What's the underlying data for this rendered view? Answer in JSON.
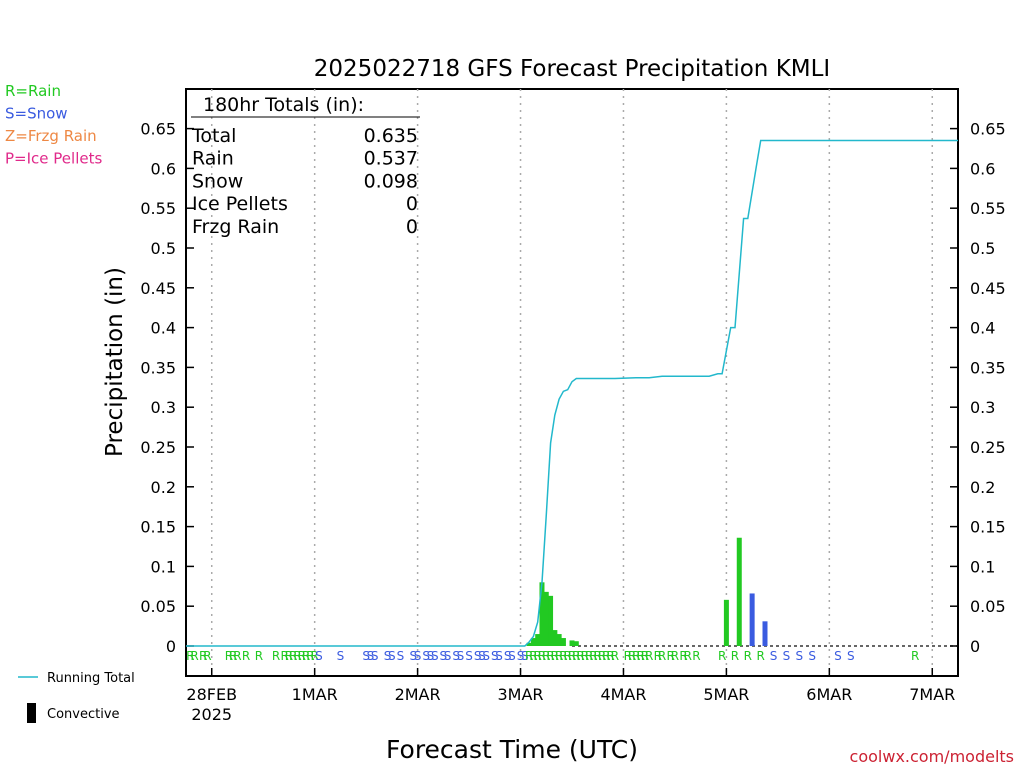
{
  "chart_data": {
    "type": "bar",
    "title": "2025022718 GFS Forecast Precipitation KMLI",
    "xlabel": "Forecast Time (UTC)",
    "ylabel": "Precipitation (in)",
    "ylim": [
      -0.025,
      0.7
    ],
    "y_ticks": [
      0,
      0.05,
      0.1,
      0.15,
      0.2,
      0.25,
      0.3,
      0.35,
      0.4,
      0.45,
      0.5,
      0.55,
      0.6,
      0.65
    ],
    "y_tick_labels": [
      "0",
      "0.05",
      "0.1",
      "0.15",
      "0.2",
      "0.25",
      "0.3",
      "0.35",
      "0.4",
      "0.45",
      "0.5",
      "0.55",
      "0.6",
      "0.65"
    ],
    "x_tick_labels": [
      "28FEB",
      "1MAR",
      "2MAR",
      "3MAR",
      "4MAR",
      "5MAR",
      "6MAR",
      "7MAR"
    ],
    "x_tick_sublabel": "2025",
    "x_tick_hours": [
      6,
      30,
      54,
      78,
      102,
      126,
      150,
      174
    ],
    "x_range_hours": [
      0,
      180
    ],
    "grid": "vertical dotted at day ticks",
    "legend_types": [
      {
        "label": "R=Rain",
        "color": "#22c922"
      },
      {
        "label": "S=Snow",
        "color": "#3a5be0"
      },
      {
        "label": "Z=Frzg Rain",
        "color": "#ee8844"
      },
      {
        "label": "P=Ice Pellets",
        "color": "#e0298a"
      }
    ],
    "legend_lines": [
      {
        "label": "Running Total",
        "color": "#22b8cc"
      },
      {
        "label": "Convective",
        "color": "#000000"
      }
    ],
    "totals": {
      "header": "180hr Totals (in):",
      "rows": [
        {
          "label": "Total",
          "value": "0.635"
        },
        {
          "label": "Rain",
          "value": "0.537"
        },
        {
          "label": "Snow",
          "value": "0.098"
        },
        {
          "label": "Ice Pellets",
          "value": "0"
        },
        {
          "label": "Frzg Rain",
          "value": "0"
        }
      ]
    },
    "running_total": {
      "name": "Running Total",
      "hours": [
        0,
        79,
        80,
        81,
        82,
        83,
        84,
        85,
        86,
        87,
        88,
        89,
        90,
        91,
        92,
        93,
        94,
        96,
        100,
        105,
        108,
        111,
        114,
        119,
        122,
        124,
        125,
        127,
        128,
        130,
        131,
        133,
        134,
        180
      ],
      "values": [
        0,
        0,
        0.005,
        0.012,
        0.03,
        0.08,
        0.165,
        0.255,
        0.29,
        0.31,
        0.32,
        0.322,
        0.332,
        0.336,
        0.336,
        0.336,
        0.336,
        0.336,
        0.336,
        0.337,
        0.337,
        0.339,
        0.339,
        0.339,
        0.339,
        0.342,
        0.342,
        0.4,
        0.4,
        0.537,
        0.537,
        0.603,
        0.635,
        0.635
      ]
    },
    "bars": [
      {
        "hour": 80,
        "value": 0.004,
        "type": "rain"
      },
      {
        "hour": 81,
        "value": 0.01,
        "type": "rain"
      },
      {
        "hour": 82,
        "value": 0.015,
        "type": "rain"
      },
      {
        "hour": 83,
        "value": 0.08,
        "type": "rain"
      },
      {
        "hour": 84,
        "value": 0.068,
        "type": "rain"
      },
      {
        "hour": 85,
        "value": 0.063,
        "type": "rain"
      },
      {
        "hour": 86,
        "value": 0.02,
        "type": "rain"
      },
      {
        "hour": 87,
        "value": 0.015,
        "type": "rain"
      },
      {
        "hour": 88,
        "value": 0.01,
        "type": "rain"
      },
      {
        "hour": 90,
        "value": 0.007,
        "type": "rain"
      },
      {
        "hour": 91,
        "value": 0.006,
        "type": "rain"
      },
      {
        "hour": 126,
        "value": 0.058,
        "type": "rain"
      },
      {
        "hour": 129,
        "value": 0.136,
        "type": "rain"
      },
      {
        "hour": 132,
        "value": 0.066,
        "type": "snow"
      },
      {
        "hour": 135,
        "value": 0.031,
        "type": "snow"
      }
    ],
    "type_marks": [
      {
        "hour": 1,
        "type": "R"
      },
      {
        "hour": 2,
        "type": "R"
      },
      {
        "hour": 4,
        "type": "R"
      },
      {
        "hour": 5,
        "type": "R"
      },
      {
        "hour": 10,
        "type": "R"
      },
      {
        "hour": 11,
        "type": "R"
      },
      {
        "hour": 12,
        "type": "R"
      },
      {
        "hour": 14,
        "type": "R"
      },
      {
        "hour": 17,
        "type": "R"
      },
      {
        "hour": 21,
        "type": "R"
      },
      {
        "hour": 23,
        "type": "R"
      },
      {
        "hour": 24,
        "type": "R"
      },
      {
        "hour": 25,
        "type": "R"
      },
      {
        "hour": 26,
        "type": "R"
      },
      {
        "hour": 27,
        "type": "R"
      },
      {
        "hour": 28,
        "type": "R"
      },
      {
        "hour": 29,
        "type": "R"
      },
      {
        "hour": 30,
        "type": "R"
      },
      {
        "hour": 31,
        "type": "S"
      },
      {
        "hour": 36,
        "type": "S"
      },
      {
        "hour": 42,
        "type": "S"
      },
      {
        "hour": 43,
        "type": "S"
      },
      {
        "hour": 44,
        "type": "S"
      },
      {
        "hour": 47,
        "type": "S"
      },
      {
        "hour": 48,
        "type": "S"
      },
      {
        "hour": 50,
        "type": "S"
      },
      {
        "hour": 53,
        "type": "S"
      },
      {
        "hour": 54,
        "type": "S"
      },
      {
        "hour": 56,
        "type": "S"
      },
      {
        "hour": 57,
        "type": "S"
      },
      {
        "hour": 58,
        "type": "S"
      },
      {
        "hour": 60,
        "type": "S"
      },
      {
        "hour": 61,
        "type": "S"
      },
      {
        "hour": 63,
        "type": "S"
      },
      {
        "hour": 64,
        "type": "S"
      },
      {
        "hour": 66,
        "type": "S"
      },
      {
        "hour": 68,
        "type": "S"
      },
      {
        "hour": 69,
        "type": "S"
      },
      {
        "hour": 70,
        "type": "S"
      },
      {
        "hour": 72,
        "type": "S"
      },
      {
        "hour": 73,
        "type": "S"
      },
      {
        "hour": 75,
        "type": "S"
      },
      {
        "hour": 76,
        "type": "S"
      },
      {
        "hour": 78,
        "type": "S"
      },
      {
        "hour": 79,
        "type": "S"
      },
      {
        "hour": 80,
        "type": "R"
      },
      {
        "hour": 81,
        "type": "R"
      },
      {
        "hour": 82,
        "type": "R"
      },
      {
        "hour": 83,
        "type": "R"
      },
      {
        "hour": 84,
        "type": "R"
      },
      {
        "hour": 85,
        "type": "R"
      },
      {
        "hour": 86,
        "type": "R"
      },
      {
        "hour": 87,
        "type": "R"
      },
      {
        "hour": 88,
        "type": "R"
      },
      {
        "hour": 89,
        "type": "R"
      },
      {
        "hour": 90,
        "type": "R"
      },
      {
        "hour": 91,
        "type": "R"
      },
      {
        "hour": 92,
        "type": "R"
      },
      {
        "hour": 93,
        "type": "R"
      },
      {
        "hour": 94,
        "type": "R"
      },
      {
        "hour": 95,
        "type": "R"
      },
      {
        "hour": 96,
        "type": "R"
      },
      {
        "hour": 97,
        "type": "R"
      },
      {
        "hour": 98,
        "type": "R"
      },
      {
        "hour": 99,
        "type": "R"
      },
      {
        "hour": 100,
        "type": "R"
      },
      {
        "hour": 103,
        "type": "R"
      },
      {
        "hour": 104,
        "type": "R"
      },
      {
        "hour": 105,
        "type": "R"
      },
      {
        "hour": 106,
        "type": "R"
      },
      {
        "hour": 107,
        "type": "R"
      },
      {
        "hour": 108,
        "type": "R"
      },
      {
        "hour": 110,
        "type": "R"
      },
      {
        "hour": 111,
        "type": "R"
      },
      {
        "hour": 113,
        "type": "R"
      },
      {
        "hour": 114,
        "type": "R"
      },
      {
        "hour": 116,
        "type": "R"
      },
      {
        "hour": 117,
        "type": "R"
      },
      {
        "hour": 119,
        "type": "R"
      },
      {
        "hour": 125,
        "type": "R"
      },
      {
        "hour": 128,
        "type": "R"
      },
      {
        "hour": 131,
        "type": "R"
      },
      {
        "hour": 134,
        "type": "R"
      },
      {
        "hour": 137,
        "type": "S"
      },
      {
        "hour": 140,
        "type": "S"
      },
      {
        "hour": 143,
        "type": "S"
      },
      {
        "hour": 146,
        "type": "S"
      },
      {
        "hour": 152,
        "type": "S"
      },
      {
        "hour": 155,
        "type": "S"
      },
      {
        "hour": 170,
        "type": "R"
      }
    ],
    "watermark": "coolwx.com/modelts"
  }
}
